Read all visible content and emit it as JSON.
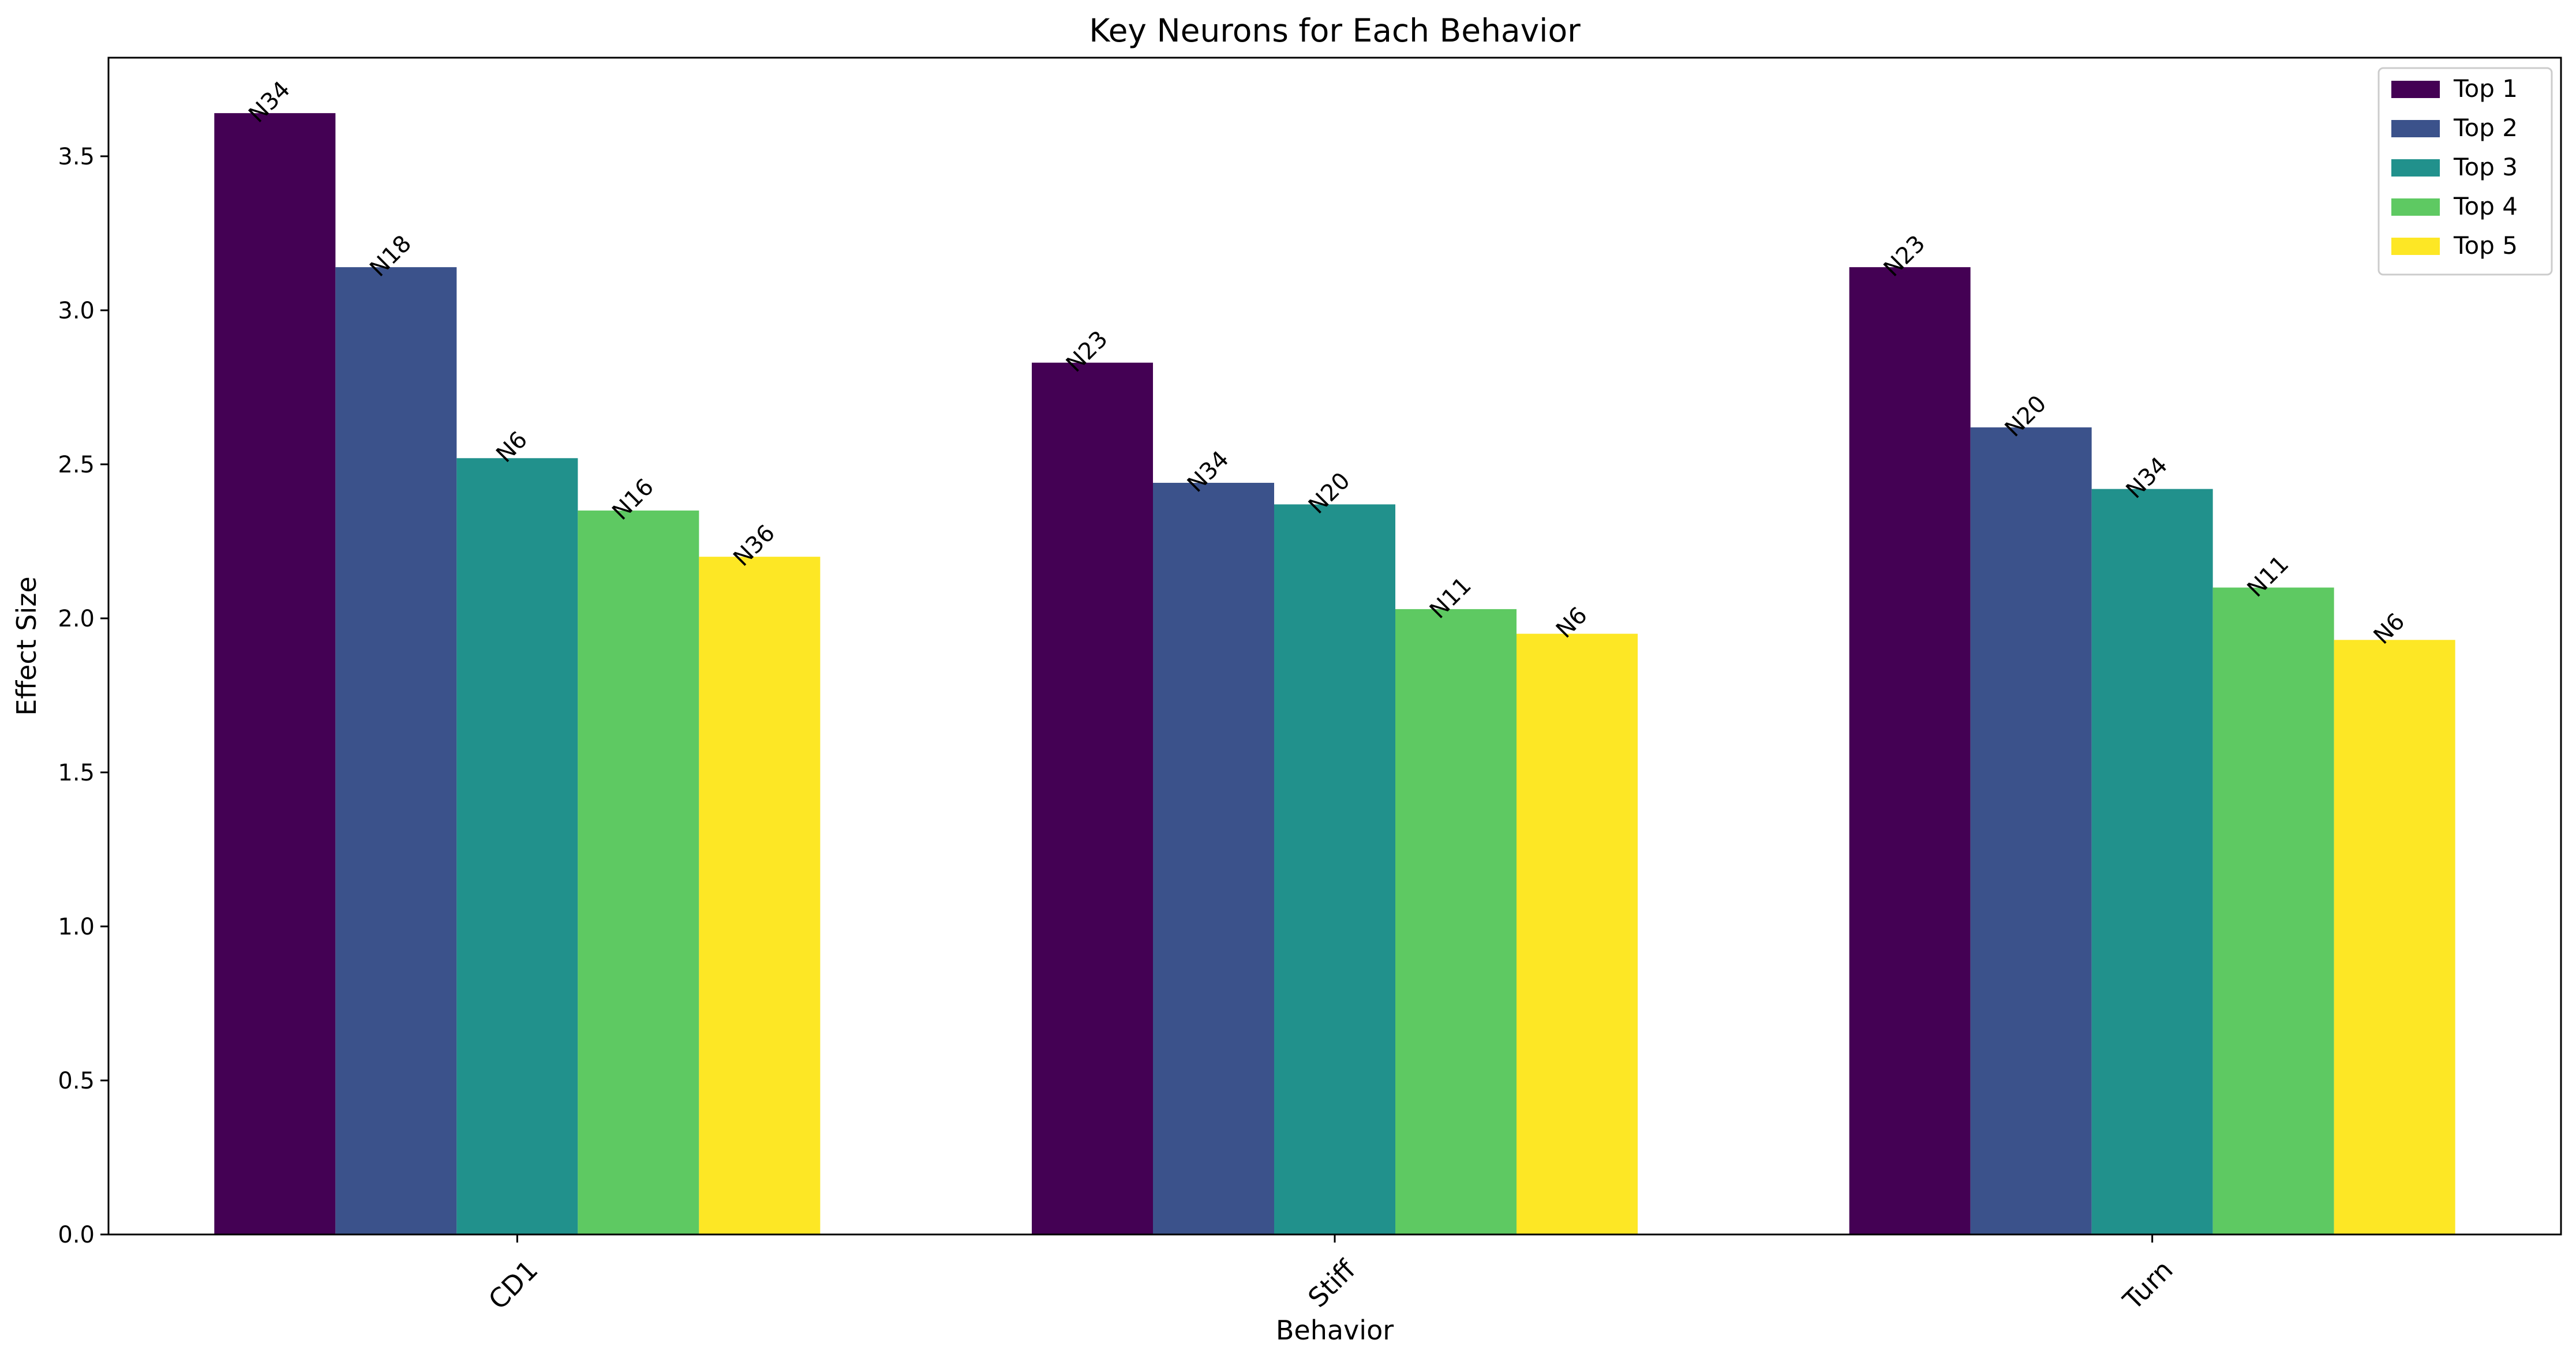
{
  "chart_data": {
    "type": "bar",
    "title": "Key Neurons for Each Behavior",
    "xlabel": "Behavior",
    "ylabel": "Effect Size",
    "categories": [
      "CD1",
      "Stiff",
      "Turn"
    ],
    "ylim": [
      0,
      3.82
    ],
    "yticks": [
      "0.0",
      "0.5",
      "1.0",
      "1.5",
      "2.0",
      "2.5",
      "3.0",
      "3.5"
    ],
    "grid": false,
    "legend_position": "top-right",
    "series": [
      {
        "name": "Top 1",
        "color": "#440154",
        "values": [
          3.64,
          2.83,
          3.14
        ],
        "labels": [
          "N34",
          "N23",
          "N23"
        ]
      },
      {
        "name": "Top 2",
        "color": "#3b528b",
        "values": [
          3.14,
          2.44,
          2.62
        ],
        "labels": [
          "N18",
          "N34",
          "N20"
        ]
      },
      {
        "name": "Top 3",
        "color": "#21918c",
        "values": [
          2.52,
          2.37,
          2.42
        ],
        "labels": [
          "N6",
          "N20",
          "N34"
        ]
      },
      {
        "name": "Top 4",
        "color": "#5ec962",
        "values": [
          2.35,
          2.03,
          2.1
        ],
        "labels": [
          "N16",
          "N11",
          "N11"
        ]
      },
      {
        "name": "Top 5",
        "color": "#fde725",
        "values": [
          2.2,
          1.95,
          1.93
        ],
        "labels": [
          "N36",
          "N6",
          "N6"
        ]
      }
    ]
  }
}
